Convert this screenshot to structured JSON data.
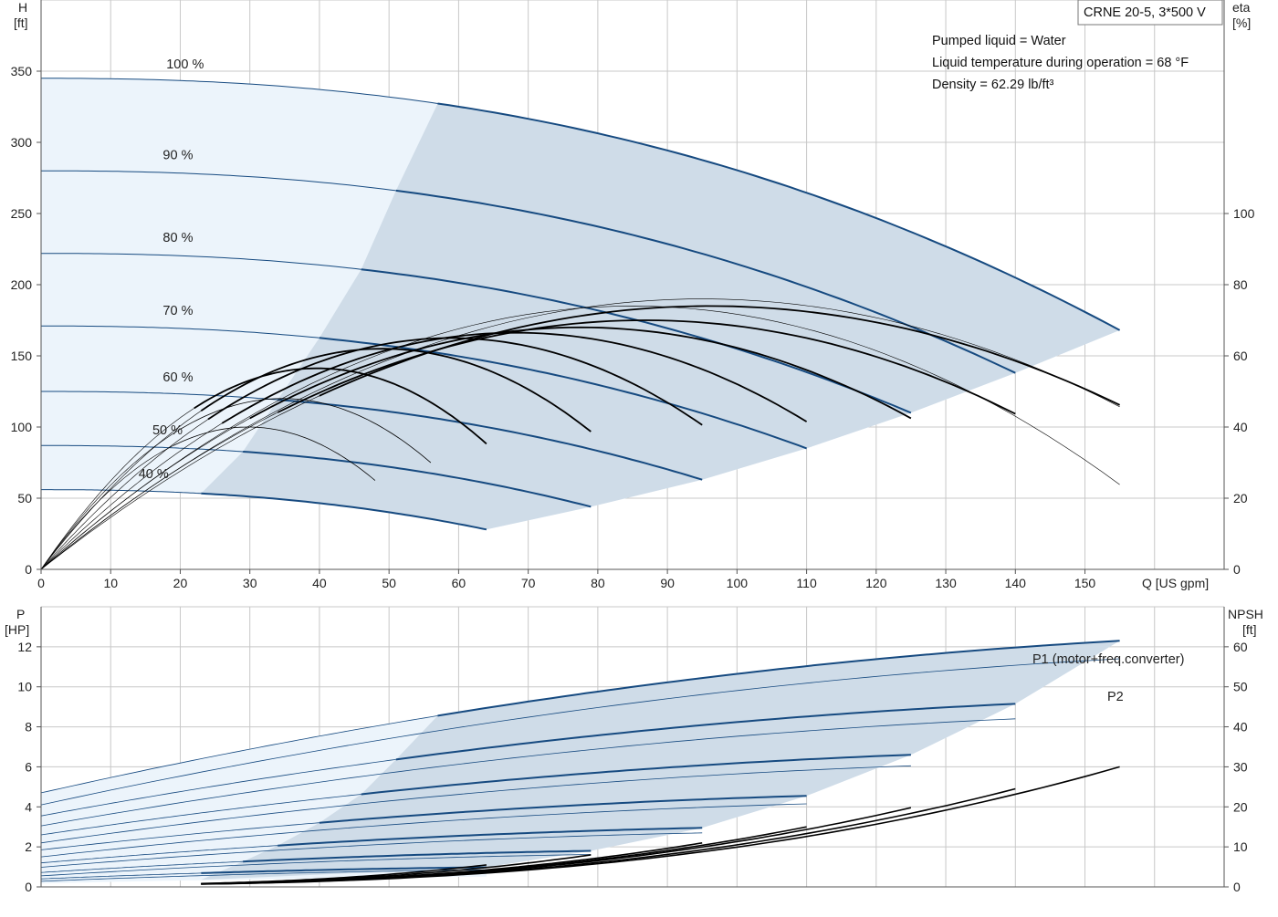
{
  "colors": {
    "grid": "#c8c8c8",
    "axis": "#555555",
    "light_fill": "#ecf4fb",
    "dark_fill": "#cfdce8",
    "blue_curve": "#164a80",
    "blue_label": "#1b4f8a",
    "eff_curve": "#000000"
  },
  "title_box": {
    "text": "CRNE 20-5, 3*500 V"
  },
  "info": {
    "line1": "Pumped liquid = Water",
    "line2": "Liquid temperature during operation = 68 °F",
    "line3": "Density = 62.29 lb/ft³"
  },
  "chart_data": [
    {
      "type": "line",
      "name": "head-efficiency",
      "xlabel": "Q [US gpm]",
      "ylabel_left": {
        "line1": "H",
        "line2": "[ft]"
      },
      "ylabel_right": {
        "line1": "eta",
        "line2": "[%]"
      },
      "xlim": [
        0,
        170
      ],
      "ylim_left": [
        0,
        400
      ],
      "ylim_right": [
        0,
        160
      ],
      "x_ticks": [
        0,
        10,
        20,
        30,
        40,
        50,
        60,
        70,
        80,
        90,
        100,
        110,
        120,
        130,
        140,
        150
      ],
      "y_ticks_left": [
        0,
        50,
        100,
        150,
        200,
        250,
        300,
        350
      ],
      "y_ticks_right": [
        0,
        20,
        40,
        60,
        80,
        100
      ],
      "grid": true,
      "speed_labels": [
        {
          "text": "100 %",
          "x": 18,
          "y": 352
        },
        {
          "text": "90 %",
          "x": 17.5,
          "y": 288
        },
        {
          "text": "80 %",
          "x": 17.5,
          "y": 230
        },
        {
          "text": "70 %",
          "x": 17.5,
          "y": 179
        },
        {
          "text": "60 %",
          "x": 17.5,
          "y": 132
        },
        {
          "text": "50 %",
          "x": 16,
          "y": 95
        },
        {
          "text": "40 %",
          "x": 14,
          "y": 64
        }
      ],
      "head_series": [
        {
          "speed": 1.0,
          "q_end": 155,
          "h0": 345,
          "h_end": 168,
          "q_min": 57
        },
        {
          "speed": 0.9,
          "q_end": 140,
          "h0": 280,
          "h_end": 138,
          "q_min": 51
        },
        {
          "speed": 0.8,
          "q_end": 125,
          "h0": 222,
          "h_end": 110,
          "q_min": 46
        },
        {
          "speed": 0.7,
          "q_end": 110,
          "h0": 171,
          "h_end": 85,
          "q_min": 40
        },
        {
          "speed": 0.6,
          "q_end": 95,
          "h0": 125,
          "h_end": 63,
          "q_min": 34
        },
        {
          "speed": 0.5,
          "q_end": 79,
          "h0": 87,
          "h_end": 44,
          "q_min": 29
        },
        {
          "speed": 0.4,
          "q_end": 64,
          "h0": 56,
          "h_end": 28,
          "q_min": 23
        }
      ],
      "efficiency_series_max_pct": [
        74,
        70,
        68,
        66.5,
        65,
        62,
        56.5,
        48,
        40
      ],
      "efficiency_series_end_q": [
        155,
        140,
        125,
        110,
        95,
        79,
        64,
        56,
        48
      ]
    },
    {
      "type": "line",
      "name": "power-npsh",
      "xlabel": "",
      "ylabel_left": {
        "line1": "P",
        "line2": "[HP]"
      },
      "ylabel_right": {
        "line1": "NPSH",
        "line2": "[ft]"
      },
      "xlim": [
        0,
        170
      ],
      "ylim_left": [
        0,
        14
      ],
      "ylim_right": [
        0,
        70
      ],
      "y_ticks_left": [
        0,
        2,
        4,
        6,
        8,
        10,
        12
      ],
      "y_ticks_right": [
        0,
        10,
        20,
        30,
        40,
        50,
        60
      ],
      "grid": true,
      "labels": {
        "p1": "P1 (motor+freq.converter)",
        "p2": "P2"
      },
      "p1_series": [
        {
          "q_end": 155,
          "p0": 4.7,
          "p_end": 12.3
        },
        {
          "q_end": 140,
          "p0": 3.55,
          "p_end": 9.15
        },
        {
          "q_end": 125,
          "p0": 2.6,
          "p_end": 6.6
        },
        {
          "q_end": 110,
          "p0": 1.85,
          "p_end": 4.55
        },
        {
          "q_end": 95,
          "p0": 1.2,
          "p_end": 2.95
        },
        {
          "q_end": 79,
          "p0": 0.72,
          "p_end": 1.8
        },
        {
          "q_end": 64,
          "p0": 0.4,
          "p_end": 0.98
        }
      ],
      "p2_series": [
        {
          "q_end": 155,
          "p0": 4.1,
          "p_end": 11.4
        },
        {
          "q_end": 140,
          "p0": 3.05,
          "p_end": 8.4
        },
        {
          "q_end": 125,
          "p0": 2.2,
          "p_end": 6.05
        },
        {
          "q_end": 110,
          "p0": 1.5,
          "p_end": 4.15
        },
        {
          "q_end": 95,
          "p0": 0.98,
          "p_end": 2.7
        },
        {
          "q_end": 79,
          "p0": 0.55,
          "p_end": 1.62
        },
        {
          "q_end": 64,
          "p0": 0.28,
          "p_end": 0.85
        }
      ],
      "npsh_series": [
        {
          "q_end": 155,
          "n_end": 30
        },
        {
          "q_end": 140,
          "n_end": 24.5
        },
        {
          "q_end": 125,
          "n_end": 19.8
        },
        {
          "q_end": 110,
          "n_end": 15
        },
        {
          "q_end": 95,
          "n_end": 11
        },
        {
          "q_end": 79,
          "n_end": 8
        },
        {
          "q_end": 64,
          "n_end": 5.5
        }
      ]
    }
  ]
}
